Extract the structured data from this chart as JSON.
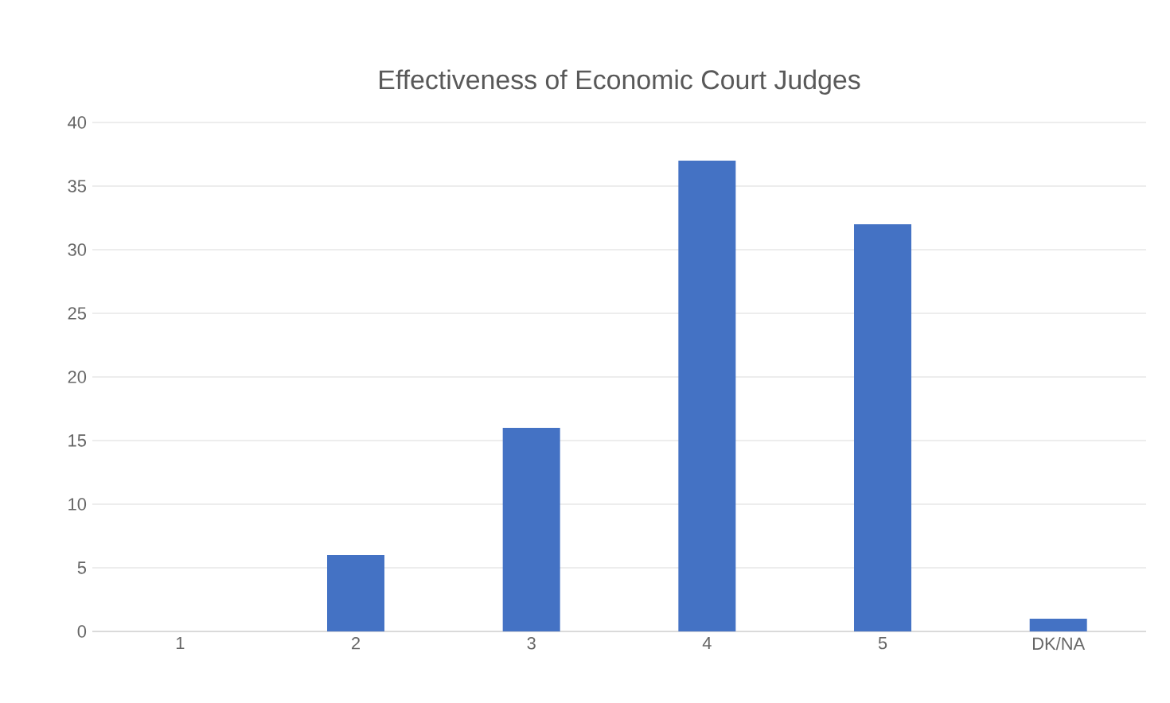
{
  "chart_data": {
    "type": "bar",
    "title": "Effectiveness of Economic Court Judges",
    "categories": [
      "1",
      "2",
      "3",
      "4",
      "5",
      "DK/NA"
    ],
    "values": [
      0,
      6,
      16,
      37,
      32,
      1
    ],
    "color": "#4472c4",
    "ylim": [
      0,
      40
    ],
    "yticks": [
      0,
      5,
      10,
      15,
      20,
      25,
      30,
      35,
      40
    ],
    "grid": "y"
  }
}
